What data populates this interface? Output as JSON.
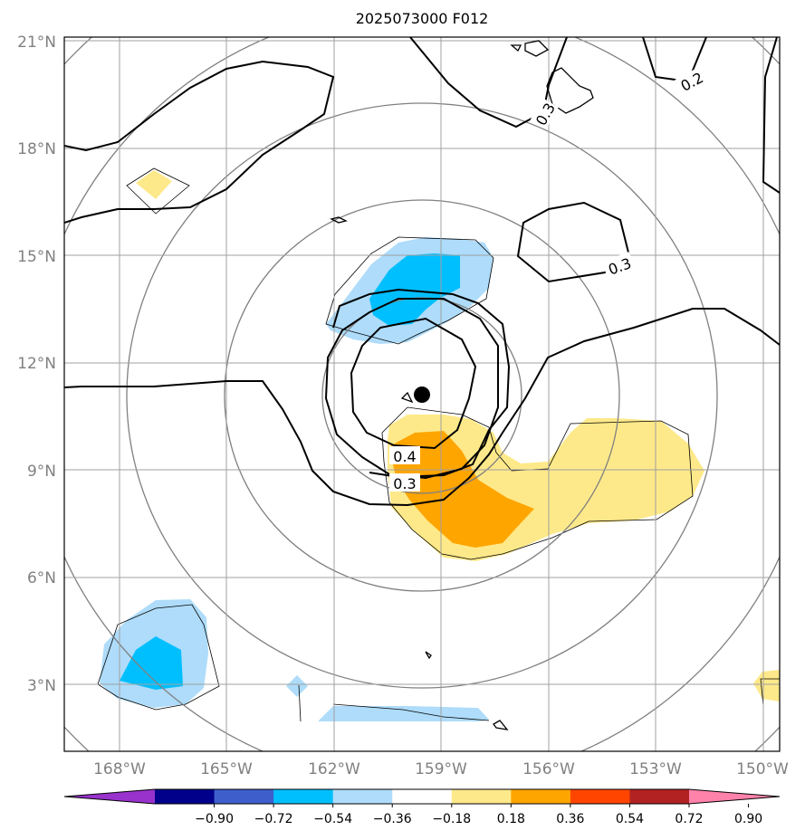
{
  "title": "2025073000 F012",
  "map": {
    "lat_ticks": [
      "21°N",
      "18°N",
      "15°N",
      "12°N",
      "9°N",
      "6°N",
      "3°N"
    ],
    "lon_ticks": [
      "168°W",
      "165°W",
      "162°W",
      "159°W",
      "156°W",
      "153°W",
      "150°W"
    ],
    "contour_labels": [
      "0.4",
      "0.3",
      "0.3",
      "0.3",
      "0.2"
    ],
    "storm_center": {
      "lat": 11.1,
      "lon": -159.5
    },
    "shading_colors": {
      "pos_1": "#fee98a",
      "pos_2": "#ffa500",
      "neg_1": "#aedcfa",
      "neg_2": "#00bfff"
    }
  },
  "colorbar": {
    "labels": [
      "−0.90",
      "−0.72",
      "−0.54",
      "−0.36",
      "−0.18",
      "0.18",
      "0.36",
      "0.54",
      "0.72",
      "0.90"
    ],
    "colors": [
      "#9932cc",
      "#00008b",
      "#3e5fcb",
      "#00bfff",
      "#aedcfa",
      "#ffffff",
      "#fee98a",
      "#ffa500",
      "#ff4500",
      "#b22222",
      "#ff82ab"
    ]
  }
}
